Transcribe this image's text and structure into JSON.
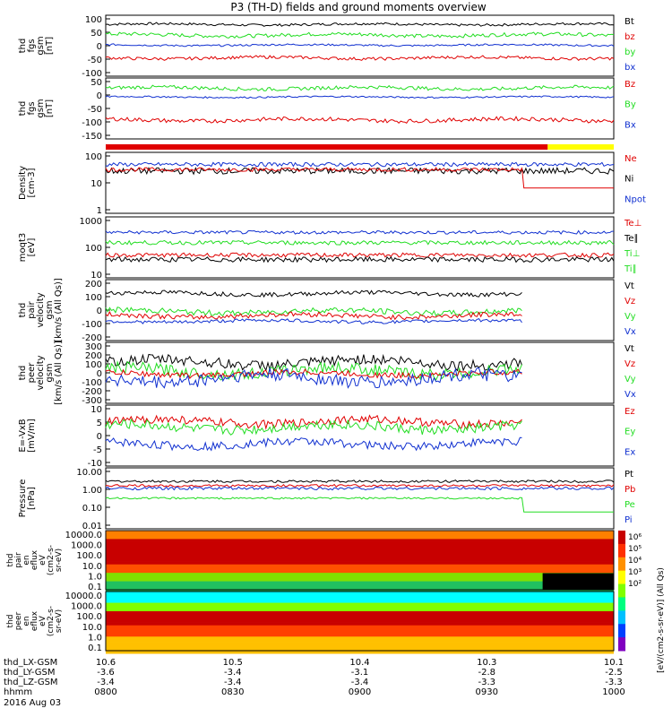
{
  "title": "P3 (TH-D) fields and ground moments overview",
  "colors": {
    "black": "#000000",
    "red": "#e00000",
    "green": "#22dd22",
    "blue": "#1030d0",
    "yellow": "#ffff00"
  },
  "chart_data": {
    "type": "line",
    "x_ticks": [
      "0800",
      "0830",
      "0900",
      "0930",
      "1000"
    ],
    "ephemeris": {
      "rows": [
        {
          "label": "thd_LX-GSM",
          "values": [
            "10.6",
            "10.5",
            "10.4",
            "10.3",
            "10.1"
          ]
        },
        {
          "label": "thd_LY-GSM",
          "values": [
            "-3.6",
            "-3.4",
            "-3.1",
            "-2.8",
            "-2.5"
          ]
        },
        {
          "label": "thd_LZ-GSM",
          "values": [
            "-3.4",
            "-3.4",
            "-3.4",
            "-3.3",
            "-3.3"
          ]
        },
        {
          "label": "hhmm",
          "values": [
            "0800",
            "0830",
            "0900",
            "0930",
            "1000"
          ]
        }
      ],
      "date": "2016 Aug 03"
    },
    "panels": [
      {
        "ylabel": [
          "thd",
          "fgs",
          "gsm",
          "[nT]"
        ],
        "yticks": [
          "100",
          "50",
          "0",
          "-50",
          "-100"
        ],
        "log": false,
        "ylim": [
          -100,
          100
        ],
        "legend": [
          {
            "t": "Bt",
            "c": "black"
          },
          {
            "t": "bz",
            "c": "red"
          },
          {
            "t": "by",
            "c": "green"
          },
          {
            "t": "bx",
            "c": "blue"
          }
        ],
        "series": [
          {
            "c": "black",
            "base": 70,
            "noise": 4,
            "end": 1.0
          },
          {
            "c": "green",
            "base": 35,
            "noise": 6,
            "end": 1.0
          },
          {
            "c": "blue",
            "base": 2,
            "noise": 3,
            "end": 1.0
          },
          {
            "c": "red",
            "base": -40,
            "noise": 5,
            "end": 1.0
          }
        ]
      },
      {
        "ylabel": [
          "thd",
          "fgs",
          "gsm",
          "[nT]"
        ],
        "yticks": [
          "50",
          "0",
          "-50",
          "-100",
          "-150"
        ],
        "log": false,
        "ylim": [
          -170,
          70
        ],
        "legend": [
          {
            "t": "Bz",
            "c": "red"
          },
          {
            "t": "By",
            "c": "green"
          },
          {
            "t": "Bx",
            "c": "blue"
          }
        ],
        "series": [
          {
            "c": "green",
            "base": 30,
            "noise": 7,
            "end": 1.0
          },
          {
            "c": "blue",
            "base": -5,
            "noise": 3,
            "end": 1.0
          },
          {
            "c": "red",
            "base": -95,
            "noise": 8,
            "end": 1.0
          }
        ]
      },
      {
        "ylabel": [
          "Density",
          "[cm-3]"
        ],
        "yticks": [
          "100",
          "10",
          "1"
        ],
        "log": true,
        "ylim": [
          1,
          200
        ],
        "legend": [
          {
            "t": "Ne",
            "c": "red"
          },
          {
            "t": "Ni",
            "c": "black"
          },
          {
            "t": "Npot",
            "c": "blue"
          }
        ],
        "series": [
          {
            "c": "blue",
            "base": 70,
            "noise": 0.05,
            "end": 1.0
          },
          {
            "c": "black",
            "base": 40,
            "noise": 0.08,
            "end": 1.0
          },
          {
            "c": "red",
            "base": 45,
            "noise": 0.05,
            "end": 0.82,
            "tail": 9
          }
        ]
      },
      {
        "ylabel": [
          "moqt3",
          "[eV]"
        ],
        "yticks": [
          "1000",
          "100",
          "10"
        ],
        "log": true,
        "ylim": [
          10,
          1500
        ],
        "legend": [
          {
            "t": "Te⊥",
            "c": "red"
          },
          {
            "t": "Te∥",
            "c": "black"
          },
          {
            "t": "Ti⊥",
            "c": "green"
          },
          {
            "t": "Ti∥",
            "c": "green"
          }
        ],
        "series": [
          {
            "c": "blue",
            "base": 420,
            "noise": 0.04,
            "end": 1.0
          },
          {
            "c": "green",
            "base": 180,
            "noise": 0.05,
            "end": 1.0
          },
          {
            "c": "red",
            "base": 65,
            "noise": 0.05,
            "end": 1.0
          },
          {
            "c": "black",
            "base": 45,
            "noise": 0.06,
            "end": 1.0
          }
        ]
      },
      {
        "ylabel": [
          "thd",
          "pair",
          "velocity",
          "gsm",
          "[km/s (All Qs)]"
        ],
        "yticks": [
          "200",
          "100",
          "0",
          "-100",
          "-200"
        ],
        "log": false,
        "ylim": [
          -220,
          220
        ],
        "legend": [
          {
            "t": "Vt",
            "c": "black"
          },
          {
            "t": "Vz",
            "c": "red"
          },
          {
            "t": "Vy",
            "c": "green"
          },
          {
            "t": "Vx",
            "c": "blue"
          }
        ],
        "series": [
          {
            "c": "black",
            "base": 120,
            "noise": 15,
            "end": 0.82
          },
          {
            "c": "green",
            "base": -10,
            "noise": 20,
            "end": 0.82
          },
          {
            "c": "red",
            "base": -40,
            "noise": 18,
            "end": 0.82
          },
          {
            "c": "blue",
            "base": -80,
            "noise": 12,
            "end": 0.82
          }
        ]
      },
      {
        "ylabel": [
          "thd",
          "peer",
          "velocity",
          "gsm",
          "[km/s (All Qs)]"
        ],
        "yticks": [
          "300",
          "200",
          "100",
          "0",
          "-100",
          "-200",
          "-300"
        ],
        "log": false,
        "ylim": [
          -320,
          320
        ],
        "legend": [
          {
            "t": "Vt",
            "c": "black"
          },
          {
            "t": "Vz",
            "c": "red"
          },
          {
            "t": "Vy",
            "c": "green"
          },
          {
            "t": "Vx",
            "c": "blue"
          }
        ],
        "series": [
          {
            "c": "black",
            "base": 110,
            "noise": 55,
            "end": 0.82
          },
          {
            "c": "green",
            "base": 20,
            "noise": 60,
            "end": 0.82
          },
          {
            "c": "red",
            "base": -10,
            "noise": 30,
            "end": 0.82
          },
          {
            "c": "blue",
            "base": -60,
            "noise": 70,
            "end": 0.82
          }
        ]
      },
      {
        "ylabel": [
          "E=-VxB",
          "[mV/m]"
        ],
        "yticks": [
          "10",
          "5",
          "0",
          "-5",
          "-10"
        ],
        "log": false,
        "ylim": [
          -11,
          11
        ],
        "legend": [
          {
            "t": "Ez",
            "c": "red"
          },
          {
            "t": "Ey",
            "c": "green"
          },
          {
            "t": "Ex",
            "c": "blue"
          }
        ],
        "series": [
          {
            "c": "red",
            "base": 5,
            "noise": 1.5,
            "end": 0.82
          },
          {
            "c": "green",
            "base": 3,
            "noise": 1.8,
            "end": 0.82
          },
          {
            "c": "blue",
            "base": -3,
            "noise": 1.5,
            "end": 0.82
          }
        ]
      },
      {
        "ylabel": [
          "Pressure",
          "[nPa]"
        ],
        "yticks": [
          "10.00",
          "1.00",
          "0.10",
          "0.01"
        ],
        "log": true,
        "ylim": [
          0.01,
          12
        ],
        "legend": [
          {
            "t": "Pt",
            "c": "black"
          },
          {
            "t": "Pb",
            "c": "red"
          },
          {
            "t": "Pe",
            "c": "green"
          },
          {
            "t": "Pi",
            "c": "blue"
          }
        ],
        "series": [
          {
            "c": "black",
            "base": 2.5,
            "noise": 0.04,
            "end": 1.0
          },
          {
            "c": "red",
            "base": 1.5,
            "noise": 0.04,
            "end": 1.0
          },
          {
            "c": "blue",
            "base": 1.1,
            "noise": 0.05,
            "end": 1.0
          },
          {
            "c": "green",
            "base": 0.35,
            "noise": 0.03,
            "end": 0.82,
            "tail": 0.07
          }
        ]
      }
    ],
    "spectrograms": [
      {
        "ylabel": [
          "thd",
          "pair",
          "en",
          "eflux",
          "eV",
          "(cm2-s-",
          "sr-eV)"
        ],
        "yticks": [
          "10000.0",
          "1000.0",
          "100.0",
          "10.0",
          "1.0",
          "0.1"
        ],
        "ion": true
      },
      {
        "ylabel": [
          "thd",
          "peer",
          "en",
          "eflux",
          "eV",
          "(cm2-s-",
          "sr-eV)"
        ],
        "yticks": [
          "10000.0",
          "1000.0",
          "100.0",
          "10.0",
          "1.0",
          "0.1"
        ],
        "ion": false
      }
    ],
    "colorbar": {
      "label": "[eV/(cm2-s-sr-eV)] (All Qs)",
      "ticks": [
        "10⁶",
        "10⁵",
        "10⁴",
        "10³",
        "10²"
      ]
    }
  }
}
